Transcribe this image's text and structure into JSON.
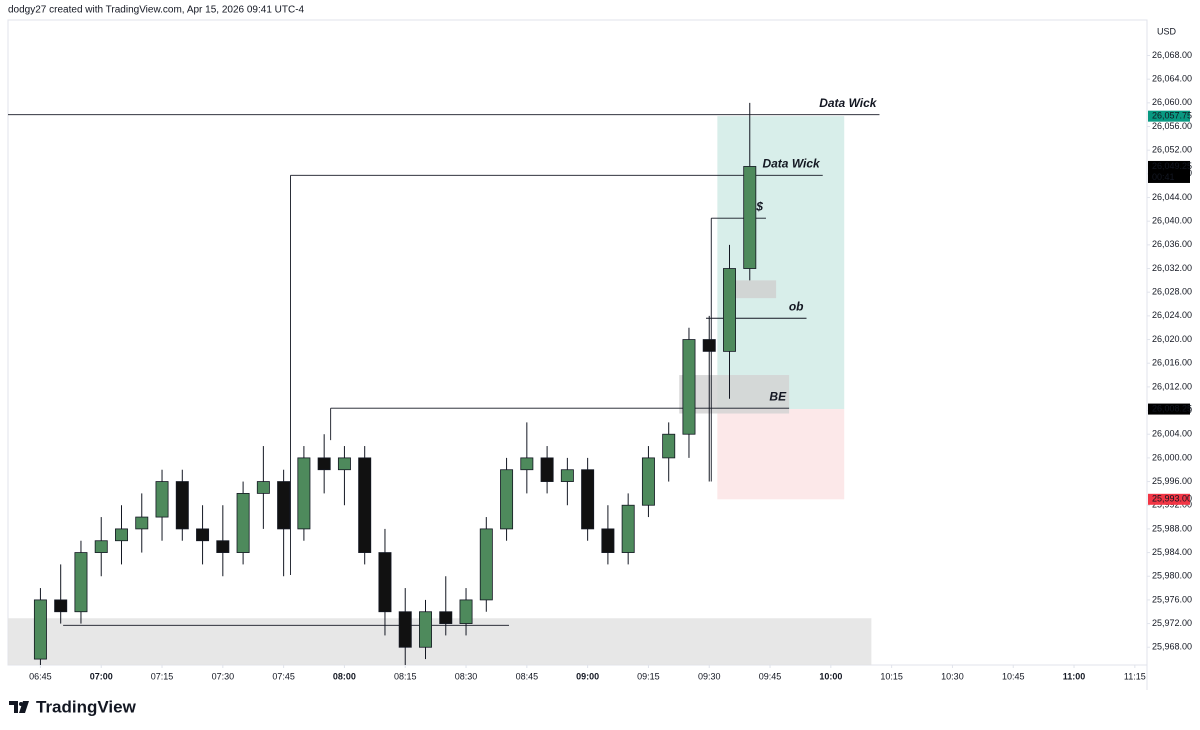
{
  "header": "dodgy27 created with TradingView.com, Apr 15, 2026 09:41 UTC-4",
  "logo": "TradingView",
  "chart_data": {
    "type": "candlestick",
    "currency": "USD",
    "up_color": "#4e8a5c",
    "down_color": "#111111",
    "grid": false,
    "xlim": [
      397,
      678
    ],
    "ylim": [
      25965,
      26074
    ],
    "xticks": [
      {
        "value": 405,
        "label": "06:45"
      },
      {
        "value": 420,
        "label": "07:00"
      },
      {
        "value": 435,
        "label": "07:15"
      },
      {
        "value": 450,
        "label": "07:30"
      },
      {
        "value": 465,
        "label": "07:45"
      },
      {
        "value": 480,
        "label": "08:00"
      },
      {
        "value": 495,
        "label": "08:15"
      },
      {
        "value": 510,
        "label": "08:30"
      },
      {
        "value": 525,
        "label": "08:45"
      },
      {
        "value": 540,
        "label": "09:00"
      },
      {
        "value": 555,
        "label": "09:15"
      },
      {
        "value": 570,
        "label": "09:30"
      },
      {
        "value": 585,
        "label": "09:45"
      },
      {
        "value": 600,
        "label": "10:00"
      },
      {
        "value": 615,
        "label": "10:15"
      },
      {
        "value": 630,
        "label": "10:30"
      },
      {
        "value": 645,
        "label": "10:45"
      },
      {
        "value": 660,
        "label": "11:00"
      },
      {
        "value": 675,
        "label": "11:15"
      }
    ],
    "yticks": [
      {
        "value": 25968,
        "label": "25,968.00"
      },
      {
        "value": 25972,
        "label": "25,972.00"
      },
      {
        "value": 25976,
        "label": "25,976.00"
      },
      {
        "value": 25980,
        "label": "25,980.00"
      },
      {
        "value": 25984,
        "label": "25,984.00"
      },
      {
        "value": 25988,
        "label": "25,988.00"
      },
      {
        "value": 25992,
        "label": "25,992.00"
      },
      {
        "value": 25996,
        "label": "25,996.00"
      },
      {
        "value": 26000,
        "label": "26,000.00"
      },
      {
        "value": 26004,
        "label": "26,004.00"
      },
      {
        "value": 26008,
        "label": "26,008.00"
      },
      {
        "value": 26012,
        "label": "26,012.00"
      },
      {
        "value": 26016,
        "label": "26,016.00"
      },
      {
        "value": 26020,
        "label": "26,020.00"
      },
      {
        "value": 26024,
        "label": "26,024.00"
      },
      {
        "value": 26028,
        "label": "26,028.00"
      },
      {
        "value": 26032,
        "label": "26,032.00"
      },
      {
        "value": 26036,
        "label": "26,036.00"
      },
      {
        "value": 26040,
        "label": "26,040.00"
      },
      {
        "value": 26044,
        "label": "26,044.00"
      },
      {
        "value": 26048,
        "label": "26,048.00"
      },
      {
        "value": 26052,
        "label": "26,052.00"
      },
      {
        "value": 26056,
        "label": "26,056.00"
      },
      {
        "value": 26060,
        "label": "26,060.00"
      },
      {
        "value": 26064,
        "label": "26,064.00"
      },
      {
        "value": 26068,
        "label": "26,068.00"
      }
    ],
    "x": [
      405,
      410,
      415,
      420,
      425,
      430,
      435,
      440,
      445,
      450,
      455,
      460,
      465,
      470,
      475,
      480,
      485,
      490,
      495,
      500,
      505,
      510,
      515,
      520,
      525,
      530,
      535,
      540,
      545,
      550,
      555,
      560,
      565,
      570,
      575,
      580
    ],
    "ohlc": [
      [
        25966,
        25978,
        25964,
        25976
      ],
      [
        25976,
        25982,
        25972,
        25974
      ],
      [
        25974,
        25986,
        25972,
        25984
      ],
      [
        25984,
        25990,
        25980,
        25986
      ],
      [
        25986,
        25992,
        25982,
        25988
      ],
      [
        25988,
        25994,
        25984,
        25990
      ],
      [
        25990,
        25998,
        25986,
        25996
      ],
      [
        25996,
        25998,
        25986,
        25988
      ],
      [
        25988,
        25992,
        25982,
        25986
      ],
      [
        25986,
        25992,
        25980,
        25984
      ],
      [
        25984,
        25996,
        25982,
        25994
      ],
      [
        25994,
        26002,
        25988,
        25996
      ],
      [
        25996,
        25998,
        25980,
        25988
      ],
      [
        25988,
        26002,
        25986,
        26000
      ],
      [
        26000,
        26004,
        25994,
        25998
      ],
      [
        25998,
        26002,
        25992,
        26000
      ],
      [
        26000,
        26002,
        25982,
        25984
      ],
      [
        25984,
        25988,
        25970,
        25974
      ],
      [
        25974,
        25978,
        25965,
        25968
      ],
      [
        25968,
        25976,
        25966,
        25974
      ],
      [
        25974,
        25980,
        25970,
        25972
      ],
      [
        25972,
        25978,
        25970,
        25976
      ],
      [
        25976,
        25990,
        25974,
        25988
      ],
      [
        25988,
        26000,
        25986,
        25998
      ],
      [
        25998,
        26006,
        25994,
        26000
      ],
      [
        26000,
        26002,
        25994,
        25996
      ],
      [
        25996,
        26000,
        25992,
        25998
      ],
      [
        25998,
        26000,
        25986,
        25988
      ],
      [
        25988,
        25992,
        25982,
        25984
      ],
      [
        25984,
        25994,
        25982,
        25992
      ],
      [
        25992,
        26002,
        25990,
        26000
      ],
      [
        26000,
        26006,
        25996,
        26004
      ],
      [
        26004,
        26022,
        26000,
        26020
      ],
      [
        26020,
        26024,
        25996,
        26018
      ],
      [
        26018,
        26036,
        26010,
        26032
      ],
      [
        26032,
        26060,
        26030,
        26049.25
      ]
    ],
    "zones": [
      {
        "from": 397,
        "to": 610,
        "top": 25972.9,
        "bottom": 25965,
        "color": "#e3e3e3"
      },
      {
        "from": 572,
        "to": 603.3,
        "top": 26057.75,
        "bottom": 26008.25,
        "color": "#d1ebe6"
      },
      {
        "from": 572,
        "to": 603.3,
        "top": 26008.25,
        "bottom": 25993,
        "color": "#fce4e5"
      },
      {
        "from": 575.4,
        "to": 586.5,
        "top": 26030,
        "bottom": 26027,
        "color": "#d0d0d0"
      },
      {
        "from": 562.6,
        "to": 589.7,
        "top": 26014,
        "bottom": 26007.5,
        "color": "#d4d4d4"
      }
    ],
    "annotations": [
      {
        "label": "Data Wick",
        "price": 26058,
        "from": 397,
        "to": 612
      },
      {
        "label": "Data Wick",
        "price": 26047.75,
        "from": 466.7,
        "to": 598,
        "drop": 25980.2
      },
      {
        "label": "$",
        "price": 26040.5,
        "from": 570.5,
        "to": 584,
        "drop": 25996
      },
      {
        "label": "ob",
        "price": 26023.6,
        "from": 569.2,
        "to": 594
      },
      {
        "label": "BE",
        "price": 26008.4,
        "from": 476.6,
        "to": 589.7,
        "drop": 26003
      },
      {
        "price": 25971.7,
        "from": 410.6,
        "to": 520.6
      }
    ],
    "price_labels": [
      {
        "value": 26057.75,
        "label": "26,057.75",
        "color": "#089981"
      },
      {
        "value": 26049.25,
        "label": "26,049.25",
        "color": "#000000",
        "countdown": "00:41"
      },
      {
        "value": 26008.25,
        "label": "26,008.25",
        "color": "#000000"
      },
      {
        "value": 25993,
        "label": "25,993.00",
        "color": "#f23645"
      }
    ]
  }
}
